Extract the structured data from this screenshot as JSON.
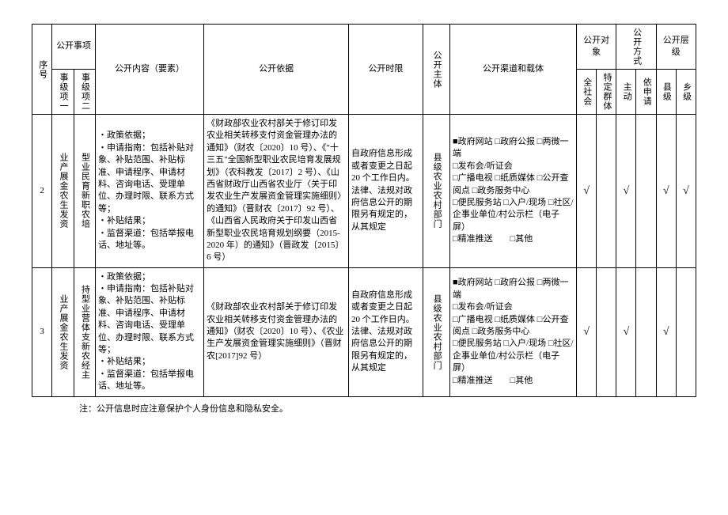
{
  "header": {
    "seq": "序号",
    "disclosure_item": "公开事项",
    "item1": "事级项一",
    "item2": "事级项二",
    "content": "公开内容（要素）",
    "basis": "公开依据",
    "time": "公开时限",
    "subject": "公开主体",
    "channel": "公开渠道和载体",
    "target": "公开对象",
    "method": "公开方式",
    "level": "公开层级",
    "all_society": "全社会",
    "specific_group": "特定群体",
    "active": "主动",
    "by_request": "依申请",
    "county": "县级",
    "township": "乡级"
  },
  "rows": [
    {
      "seq": "2",
      "item1": "业产展金农生发资",
      "item2": "型业民育新职农培",
      "content": "・政策依据；\n・申请指南：包括补贴对象、补贴范围、补贴标准、申请程序、申请材料、咨询电话、受理单位、办理时限、联系方式等；\n・补贴结果；\n・监督渠道：包括举报电话、地址等。",
      "basis": "《财政部农业农村部关于修订印发农业相关转移支付资金管理办法的通知》（财农〔2020〕10 号）、《\"十三五\"全国新型职业农民培育发展规划》（农科教发〔2017〕2 号）、《山西省财政厅山西省农业厅〈关于印发农业生产发展资金管理实施细则〉的通知》（晋财农〔2017〕92 号）、《山西省人民政府关于印发山西省新型职业农民培育规划纲要（2015-2020 年）的通知》（晋政发〔2015〕6 号）",
      "time": "自政府信息形成或者变更之日起20 个工作日内。法律、法规对政府信息公开的期限另有规定的，从其规定",
      "subject": "县级农业农村部门",
      "channel": "■政府网站 □政府公报 □两微一端\n□发布会/听证会\n□广播电视 □纸质媒体 □公开查阅点 □政务服务中心\n□便民服务站 □入户/现场 □社区/企事业单位/村公示栏（电子屏）\n□精准推送　　□其他",
      "all_society": "√",
      "specific_group": "",
      "active": "√",
      "by_request": "",
      "county": "√",
      "township": "√"
    },
    {
      "seq": "3",
      "item1": "业产展金农生发资",
      "item2": "持型业营体支新农经主",
      "content": "・政策依据；\n・申请指南：包括补贴对象、补贴范围、补贴标准、申请程序、申请材料、咨询电话、受理单位、办理时限、联系方式等；\n・补贴结果；\n・监督渠道：包括举报电话、地址等。",
      "basis": "《财政部农业农村部关于修订印发农业相关转移支付资金管理办法的通知》（财农〔2020〕10 号）、《农业生产发展资金管理实施细则》（晋财农[2017]92 号）",
      "time": "自政府信息形成或者变更之日起20 个工作日内。法律、法规对政府信息公开的期限另有规定的，从其规定",
      "subject": "县级农业农村部门",
      "channel": "■政府网站 □政府公报 □两微一端\n□发布会/听证会\n□广播电视 □纸质媒体 □公开查阅点 □政务服务中心\n□便民服务站 □入户/现场 □社区/企事业单位/村公示栏（电子屏）\n□精准推送　　□其他",
      "all_society": "√",
      "specific_group": "",
      "active": "√",
      "by_request": "",
      "county": "√",
      "township": ""
    }
  ],
  "note": "注：公开信息时应注意保护个人身份信息和隐私安全。"
}
